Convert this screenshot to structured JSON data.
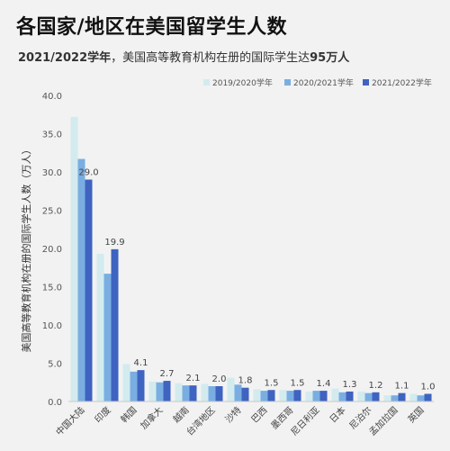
{
  "title": "各国家/地区在美国留学生人数",
  "subtitle_bold_1": "2021/2022学年",
  "subtitle_mid": "，美国高等教育机构在册的国际学生达",
  "subtitle_bold_2": "95万人",
  "chart_data": {
    "type": "bar",
    "ylabel": "美国高等教育机构在册的国际学生人数（万人）",
    "xlabel": "",
    "ylim": [
      0,
      40
    ],
    "yticks": [
      "0.0",
      "5.0",
      "10.0",
      "15.0",
      "20.0",
      "25.0",
      "30.0",
      "35.0",
      "40.0"
    ],
    "legend_position": "top-right",
    "categories": [
      "中国大陆",
      "印度",
      "韩国",
      "加拿大",
      "越南",
      "台湾地区",
      "沙特",
      "巴西",
      "墨西哥",
      "尼日利亚",
      "日本",
      "尼泊尔",
      "孟加拉国",
      "英国"
    ],
    "series": [
      {
        "name": "2019/2020学年",
        "color": "#d3ebee",
        "values": [
          37.2,
          19.3,
          4.9,
          2.6,
          2.4,
          2.3,
          3.1,
          1.6,
          1.5,
          1.3,
          1.7,
          1.3,
          0.8,
          1.0
        ]
      },
      {
        "name": "2020/2021学年",
        "color": "#7aaee2",
        "values": [
          31.7,
          16.7,
          3.9,
          2.5,
          2.1,
          2.0,
          2.2,
          1.4,
          1.4,
          1.4,
          1.2,
          1.1,
          0.8,
          0.8
        ]
      },
      {
        "name": "2021/2022学年",
        "color": "#3f63c0",
        "values": [
          29.0,
          19.9,
          4.1,
          2.7,
          2.1,
          2.0,
          1.8,
          1.5,
          1.5,
          1.4,
          1.3,
          1.2,
          1.1,
          1.0
        ]
      }
    ],
    "data_labels": [
      "29.0",
      "19.9",
      "4.1",
      "2.7",
      "2.1",
      "2.0",
      "1.8",
      "1.5",
      "1.5",
      "1.4",
      "1.3",
      "1.2",
      "1.1",
      "1.0"
    ],
    "grid": false
  }
}
